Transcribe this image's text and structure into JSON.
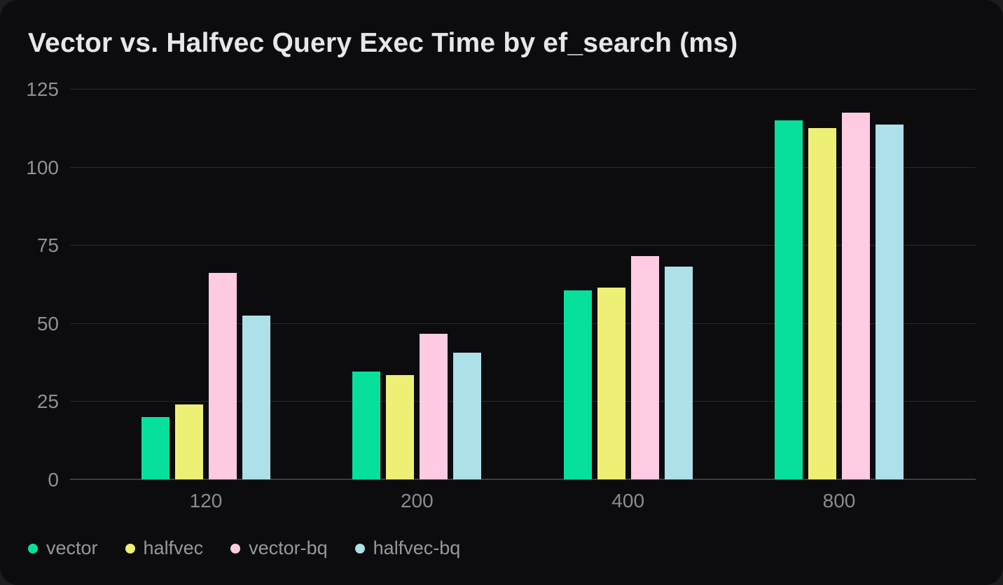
{
  "chart_data": {
    "type": "bar",
    "title": "Vector vs. Halfvec Query Exec Time by ef_search (ms)",
    "xlabel": "",
    "ylabel": "",
    "categories": [
      "120",
      "200",
      "400",
      "800"
    ],
    "series": [
      {
        "name": "vector",
        "color": "#07e09c",
        "values": [
          20,
          34.5,
          60.5,
          115
        ]
      },
      {
        "name": "halfvec",
        "color": "#edf074",
        "values": [
          24,
          33.5,
          61.5,
          112.5
        ]
      },
      {
        "name": "vector-bq",
        "color": "#ffcbe3",
        "values": [
          66,
          46.5,
          71.5,
          117.5
        ]
      },
      {
        "name": "halfvec-bq",
        "color": "#ade0e9",
        "values": [
          52.5,
          40.5,
          68,
          113.5
        ]
      }
    ],
    "y_ticks": [
      0,
      25,
      50,
      75,
      100,
      125
    ],
    "ylim": [
      0,
      125
    ],
    "grid": true,
    "legend_position": "bottom-left",
    "theme": {
      "card_background": "#0c0c0e",
      "page_background": "#1d1d1f",
      "gridline_color": "#2a2a2c",
      "axis_line_color": "#3e3e40",
      "tick_label_color": "#8e9094",
      "title_color": "#e7e7e9",
      "legend_label_color": "#96989c"
    }
  }
}
